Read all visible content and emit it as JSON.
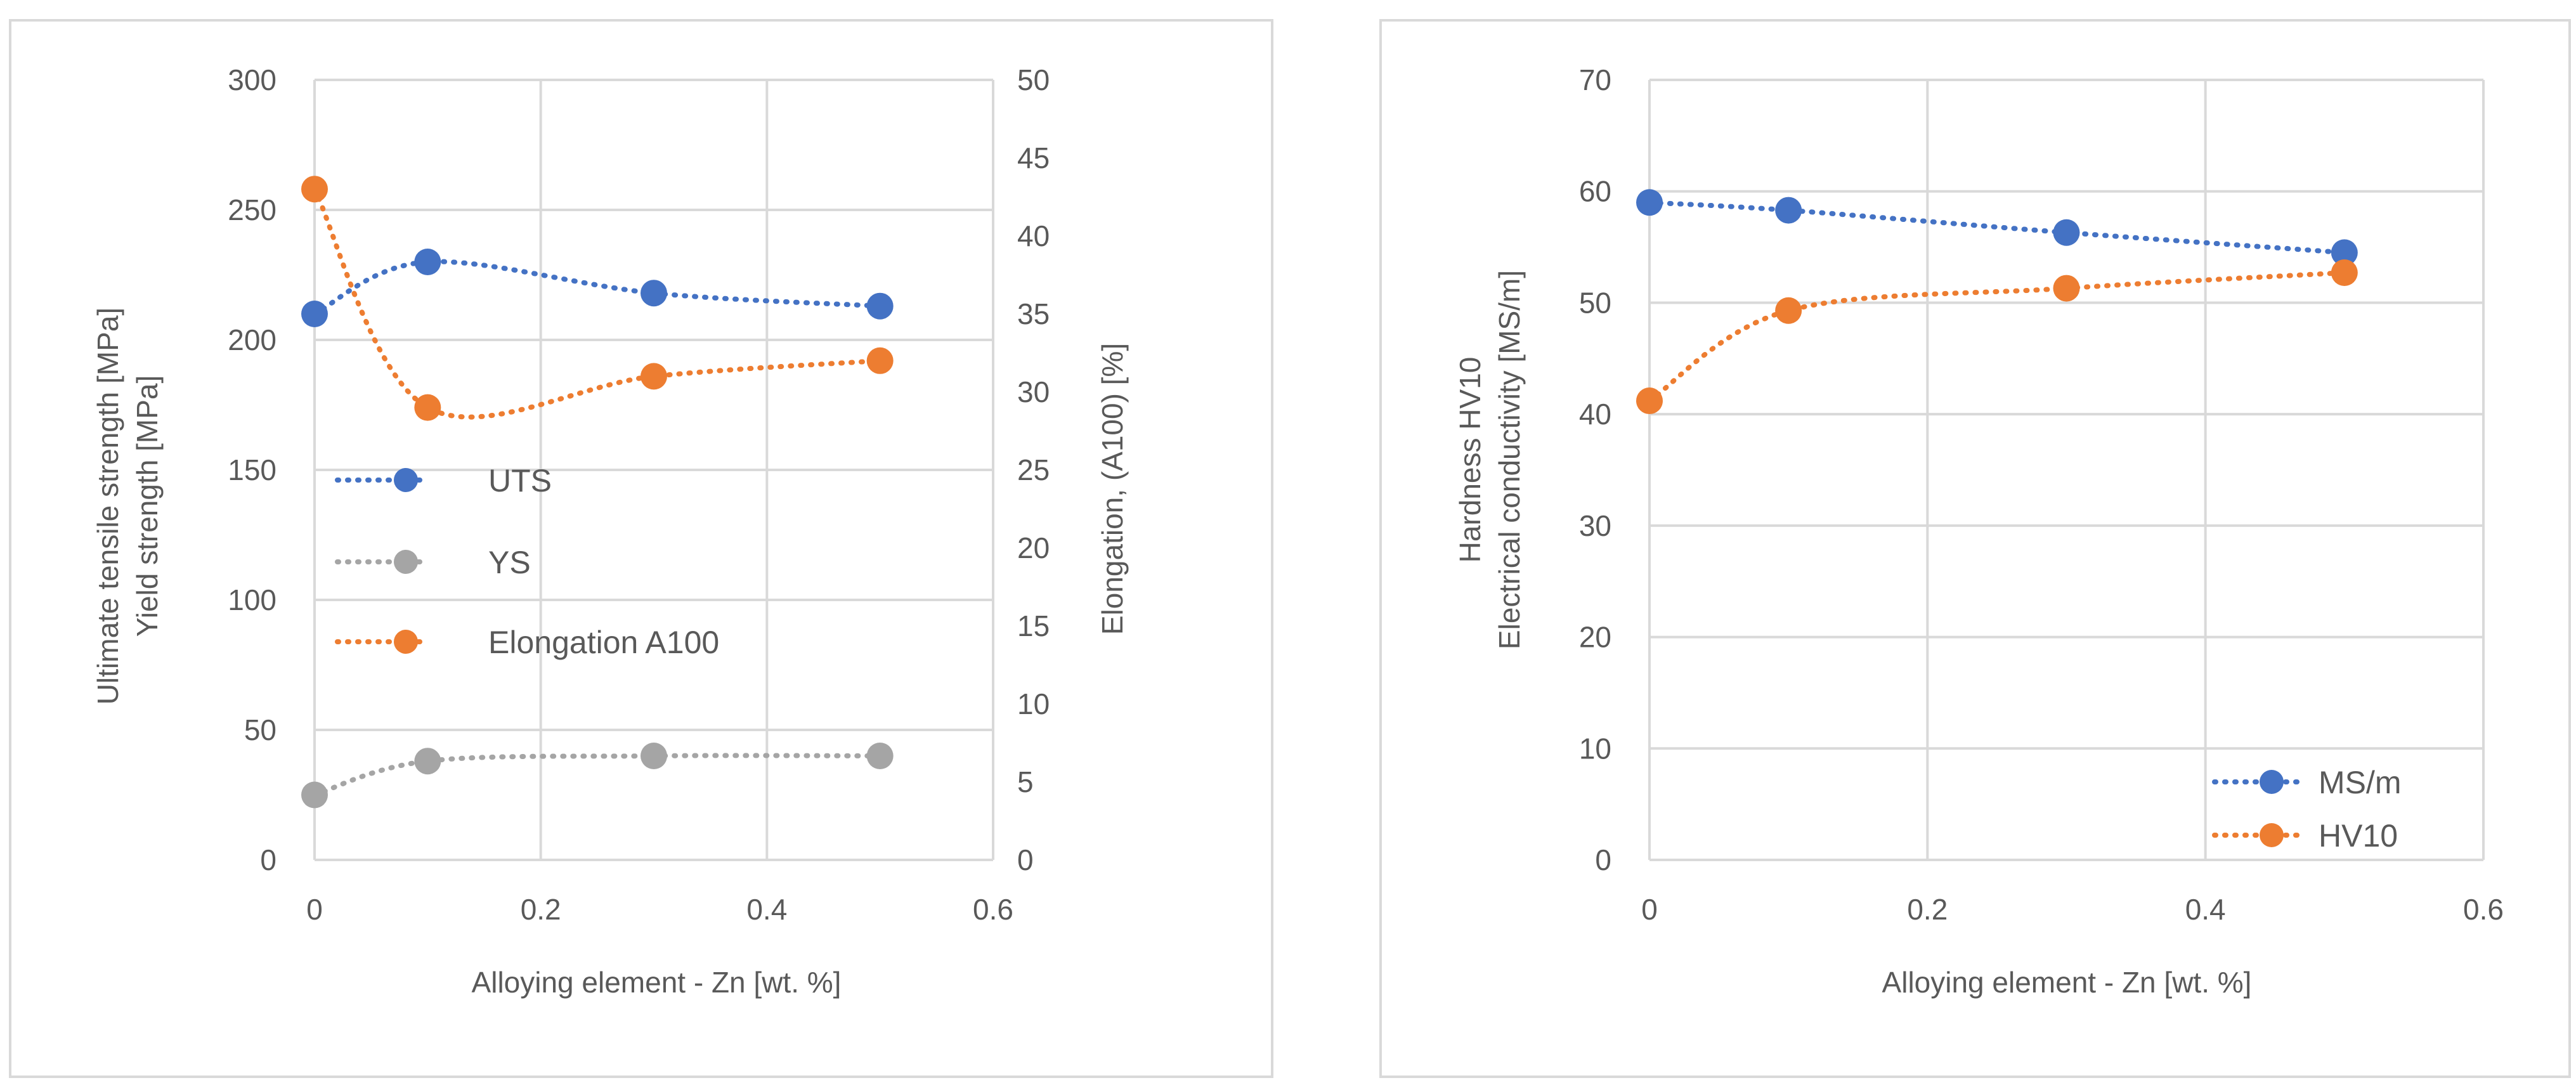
{
  "chart_data": [
    {
      "type": "line",
      "title": "",
      "xlabel": "Alloying element - Zn [wt. %]",
      "ylabel_lines": [
        "Ultimate tensile strength [MPa]",
        "Yield strength [MPa]"
      ],
      "y2label": "Elongation, (A100) [%]",
      "xlim": [
        0,
        0.6
      ],
      "ylim": [
        0,
        300
      ],
      "y2lim": [
        0,
        50
      ],
      "x_ticks": [
        0,
        0.2,
        0.4,
        0.6
      ],
      "x_tick_labels": [
        "0",
        "0.2",
        "0.4",
        "0.6"
      ],
      "y_ticks": [
        0,
        50,
        100,
        150,
        200,
        250,
        300
      ],
      "y_tick_labels": [
        "0",
        "50",
        "100",
        "150",
        "200",
        "250",
        "300"
      ],
      "y2_ticks": [
        0,
        5,
        10,
        15,
        20,
        25,
        30,
        35,
        40,
        45,
        50
      ],
      "y2_tick_labels": [
        "0",
        "5",
        "10",
        "15",
        "20",
        "25",
        "30",
        "35",
        "40",
        "45",
        "50"
      ],
      "grid": true,
      "legend_position": "center-left",
      "x": [
        0,
        0.1,
        0.3,
        0.5
      ],
      "series": [
        {
          "name": "UTS",
          "axis": "left",
          "color": "#4472C4",
          "values": [
            210,
            230,
            218,
            213
          ]
        },
        {
          "name": "YS",
          "axis": "left",
          "color": "#A5A5A5",
          "values": [
            25,
            38,
            40,
            40
          ]
        },
        {
          "name": "Elongation A100",
          "axis": "right",
          "color": "#ED7D31",
          "values": [
            43,
            29,
            31,
            32
          ]
        }
      ]
    },
    {
      "type": "line",
      "title": "",
      "xlabel": "Alloying element - Zn [wt. %]",
      "ylabel_lines": [
        "Hardness HV10",
        "Electrical conductivity [MS/m]"
      ],
      "xlim": [
        0,
        0.6
      ],
      "ylim": [
        0,
        70
      ],
      "x_ticks": [
        0,
        0.2,
        0.4,
        0.6
      ],
      "x_tick_labels": [
        "0",
        "0.2",
        "0.4",
        "0.6"
      ],
      "y_ticks": [
        0,
        10,
        20,
        30,
        40,
        50,
        60,
        70
      ],
      "y_tick_labels": [
        "0",
        "10",
        "20",
        "30",
        "40",
        "50",
        "60",
        "70"
      ],
      "grid": true,
      "legend_position": "bottom-right",
      "x": [
        0,
        0.1,
        0.3,
        0.5
      ],
      "series": [
        {
          "name": "MS/m",
          "axis": "left",
          "color": "#4472C4",
          "values": [
            59,
            58.3,
            56.3,
            54.5
          ]
        },
        {
          "name": "HV10",
          "axis": "left",
          "color": "#ED7D31",
          "values": [
            41.2,
            49.3,
            51.3,
            52.7
          ]
        }
      ]
    }
  ]
}
